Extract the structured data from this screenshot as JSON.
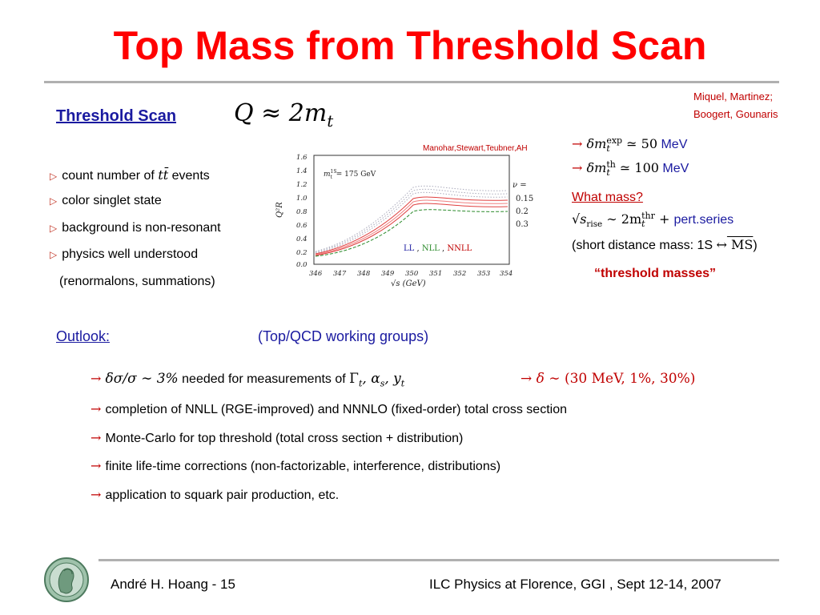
{
  "title": "Top Mass from Threshold Scan",
  "credit_lines": [
    "Miquel, Martinez;",
    "Boogert,  Gounaris"
  ],
  "threshold_scan_label": "Threshold Scan",
  "q_formula": "Q ≈ 2m",
  "q_sub": "t",
  "bullets": [
    {
      "prefix": "count number of ",
      "math": "tt̄",
      "suffix": " events"
    },
    {
      "prefix": "color singlet state",
      "math": "",
      "suffix": ""
    },
    {
      "prefix": "background is non-resonant",
      "math": "",
      "suffix": ""
    },
    {
      "prefix": "physics well understood",
      "math": "",
      "suffix": ""
    }
  ],
  "bullet_note": "(renormalons, summations)",
  "plot": {
    "credit": "Manohar,Stewart,Teubner,AH",
    "mass_label": "m",
    "mass_sup": "1S",
    "mass_sub": "t",
    "mass_value": " = 175 GeV",
    "y_axis_label": "Q²R",
    "x_axis_label": "√s (GeV)",
    "y_ticks": [
      "1.6",
      "1.4",
      "1.2",
      "1.0",
      "0.8",
      "0.6",
      "0.4",
      "0.2",
      "0.0"
    ],
    "x_ticks": [
      "346",
      "347",
      "348",
      "349",
      "350",
      "351",
      "352",
      "353",
      "354"
    ],
    "nu_label": "ν =",
    "nu_values": [
      "0.15",
      "0.2",
      "0.3"
    ],
    "legend": {
      "ll": "LL",
      "sep1": " , ",
      "nll": "NLL",
      "sep2": " , ",
      "nnll": "NNLL"
    }
  },
  "right": {
    "exp_line": {
      "arrow": "→ ",
      "math": "δm",
      "sup": "exp",
      "sub": "t",
      "rel": " ≃ 50",
      "unit": " MeV"
    },
    "th_line": {
      "arrow": "→ ",
      "math": "δm",
      "sup": "th",
      "sub": "t",
      "rel": " ≃ 100",
      "unit": " MeV"
    },
    "what_mass": "What mass?",
    "rise_line": {
      "root": "√s",
      "sub": "rise",
      "rel": " ∼ 2m",
      "sup": "thr",
      "sub2": "t",
      "plus": " + ",
      "text": "pert.series"
    },
    "short_distance": {
      "prefix": "(short distance mass:  1S ",
      "arrow": "↔",
      "ms": " MS",
      "suffix": ")"
    },
    "threshold_masses": "“threshold masses”"
  },
  "outlook": {
    "label": "Outlook:",
    "groups": "(Top/QCD working groups)",
    "line1": {
      "arrow": "→ ",
      "math": "δσ/σ  ∼  3%",
      "text": "  needed for measurements of  ",
      "params": "Γ",
      "params_sub": "t",
      "params_rest": ", α",
      "params_sub2": "s",
      "params_rest2": ", y",
      "params_sub3": "t",
      "arrow2": "→  ",
      "delta": "δ  ∼  ",
      "delta_val": "(30 MeV, 1%, 30%)"
    },
    "items": [
      "completion of NNLL (RGE-improved) and NNNLO (fixed-order) total cross section",
      "Monte-Carlo for top threshold (total cross section + distribution)",
      "finite life-time corrections (non-factorizable, interference, distributions)",
      "application to squark pair production, etc."
    ],
    "item_arrow": "→ "
  },
  "footer": {
    "author": "André H. Hoang  - 15",
    "event": "ILC Physics at Florence, GGI , Sept 12-14, 2007"
  },
  "colors": {
    "title": "#ff0000",
    "accent_red": "#c00000",
    "accent_blue": "#1a1aa0",
    "rule": "#b0b0b0"
  },
  "logo_icon": "seal-portrait-icon"
}
